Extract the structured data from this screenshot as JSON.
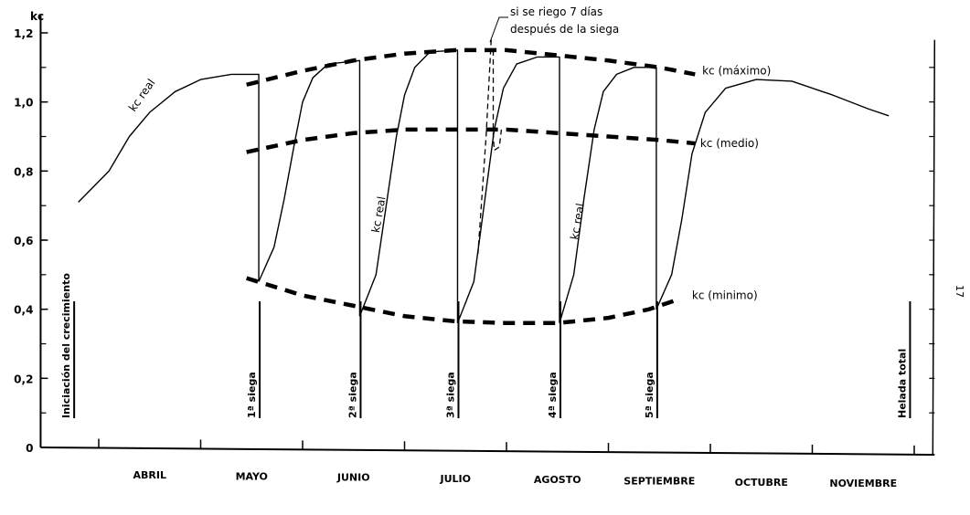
{
  "chart_data": {
    "type": "line",
    "title": "",
    "ylabel": "kc",
    "xlabel": "",
    "ylim": [
      0,
      1.2
    ],
    "xlim_months": [
      -0.57,
      8.2
    ],
    "y_ticks": [
      {
        "value": 0,
        "label": "0"
      },
      {
        "value": 0.2,
        "label": "0,2"
      },
      {
        "value": 0.4,
        "label": "0,4"
      },
      {
        "value": 0.6,
        "label": "0,6"
      },
      {
        "value": 0.8,
        "label": "0,8"
      },
      {
        "value": 1.0,
        "label": "1,0"
      },
      {
        "value": 1.2,
        "label": "1,2"
      }
    ],
    "month_ticks": [
      0,
      1,
      2,
      3,
      4,
      5,
      6,
      7,
      8
    ],
    "categories": [
      "ABRIL",
      "MAYO",
      "JUNIO",
      "JULIO",
      "AGOSTO",
      "SEPTIEMBRE",
      "OCTUBRE",
      "NOVIEMBRE"
    ],
    "series": [
      {
        "name": "kc real",
        "style": "solid",
        "points": [
          [
            -0.2,
            0.71
          ],
          [
            0.1,
            0.8
          ],
          [
            0.3,
            0.9
          ],
          [
            0.5,
            0.97
          ],
          [
            0.75,
            1.03
          ],
          [
            1.0,
            1.065
          ],
          [
            1.3,
            1.08
          ],
          [
            1.57,
            1.08
          ],
          [
            1.57,
            0.48
          ]
        ]
      },
      {
        "name": "kc real",
        "style": "solid",
        "points": [
          [
            1.57,
            0.48
          ],
          [
            1.72,
            0.58
          ],
          [
            1.82,
            0.72
          ],
          [
            1.92,
            0.88
          ],
          [
            2.0,
            1.0
          ],
          [
            2.1,
            1.07
          ],
          [
            2.25,
            1.11
          ],
          [
            2.56,
            1.12
          ],
          [
            2.56,
            0.38
          ]
        ]
      },
      {
        "name": "kc real",
        "style": "solid",
        "points": [
          [
            2.56,
            0.38
          ],
          [
            2.72,
            0.5
          ],
          [
            2.82,
            0.7
          ],
          [
            2.92,
            0.9
          ],
          [
            3.0,
            1.02
          ],
          [
            3.1,
            1.1
          ],
          [
            3.25,
            1.145
          ],
          [
            3.52,
            1.15
          ],
          [
            3.52,
            0.36
          ]
        ]
      },
      {
        "name": "kc real",
        "style": "solid",
        "points": [
          [
            3.52,
            0.36
          ],
          [
            3.68,
            0.48
          ],
          [
            3.78,
            0.7
          ],
          [
            3.88,
            0.92
          ],
          [
            3.97,
            1.04
          ],
          [
            4.1,
            1.11
          ],
          [
            4.3,
            1.13
          ],
          [
            4.52,
            1.13
          ],
          [
            4.52,
            0.36
          ]
        ]
      },
      {
        "name": "kc real",
        "style": "solid",
        "points": [
          [
            4.52,
            0.36
          ],
          [
            4.66,
            0.5
          ],
          [
            4.76,
            0.72
          ],
          [
            4.86,
            0.92
          ],
          [
            4.95,
            1.03
          ],
          [
            5.08,
            1.08
          ],
          [
            5.25,
            1.1
          ],
          [
            5.47,
            1.1
          ],
          [
            5.47,
            0.4
          ]
        ]
      },
      {
        "name": "kc real",
        "style": "solid",
        "points": [
          [
            5.47,
            0.4
          ],
          [
            5.62,
            0.5
          ],
          [
            5.72,
            0.66
          ],
          [
            5.82,
            0.85
          ],
          [
            5.95,
            0.97
          ],
          [
            6.15,
            1.04
          ],
          [
            6.45,
            1.065
          ],
          [
            6.8,
            1.06
          ],
          [
            7.2,
            1.02
          ],
          [
            7.55,
            0.98
          ],
          [
            7.75,
            0.96
          ]
        ]
      },
      {
        "name": "kc (máximo)",
        "style": "dashed",
        "points": [
          [
            1.45,
            1.05
          ],
          [
            2.0,
            1.09
          ],
          [
            2.5,
            1.12
          ],
          [
            3.0,
            1.14
          ],
          [
            3.5,
            1.15
          ],
          [
            4.0,
            1.15
          ],
          [
            4.5,
            1.135
          ],
          [
            5.0,
            1.12
          ],
          [
            5.5,
            1.1
          ],
          [
            5.85,
            1.08
          ]
        ]
      },
      {
        "name": "kc (medio)",
        "style": "dashed",
        "points": [
          [
            1.45,
            0.855
          ],
          [
            2.0,
            0.89
          ],
          [
            2.5,
            0.91
          ],
          [
            3.0,
            0.92
          ],
          [
            3.5,
            0.92
          ],
          [
            4.0,
            0.92
          ],
          [
            4.5,
            0.91
          ],
          [
            5.0,
            0.9
          ],
          [
            5.5,
            0.89
          ],
          [
            5.85,
            0.88
          ]
        ]
      },
      {
        "name": "kc (minimo)",
        "style": "dashed",
        "points": [
          [
            1.45,
            0.49
          ],
          [
            2.0,
            0.44
          ],
          [
            2.5,
            0.41
          ],
          [
            3.0,
            0.38
          ],
          [
            3.5,
            0.365
          ],
          [
            4.0,
            0.36
          ],
          [
            4.5,
            0.36
          ],
          [
            5.0,
            0.375
          ],
          [
            5.4,
            0.4
          ],
          [
            5.7,
            0.43
          ]
        ]
      },
      {
        "name": "si se riego 7 días",
        "style": "thin-dashed",
        "points": [
          [
            3.85,
            1.18
          ],
          [
            3.8,
            0.9
          ],
          [
            3.72,
            0.56
          ]
        ]
      },
      {
        "name": "si se riego 7 días",
        "style": "thin-dashed",
        "points": [
          [
            3.87,
            1.15
          ],
          [
            3.87,
            0.9
          ],
          [
            3.88,
            0.86
          ],
          [
            3.93,
            0.87
          ],
          [
            3.95,
            0.92
          ]
        ]
      }
    ],
    "events": [
      {
        "x": -0.25,
        "label": "Iniciación del crecimiento"
      },
      {
        "x": 1.57,
        "label": "1ª siega"
      },
      {
        "x": 2.56,
        "label": "2ª siega"
      },
      {
        "x": 3.52,
        "label": "3ª siega"
      },
      {
        "x": 4.52,
        "label": "4ª siega"
      },
      {
        "x": 5.47,
        "label": "5ª siega"
      },
      {
        "x": 7.95,
        "label": "Helada total"
      }
    ],
    "annotations": [
      {
        "text": "kc real",
        "x": 0.35,
        "y": 0.97,
        "angle": -55
      },
      {
        "text": "kc real",
        "x": 2.75,
        "y": 0.62,
        "angle": -80
      },
      {
        "text": "kc real",
        "x": 4.7,
        "y": 0.6,
        "angle": -80
      },
      {
        "text": "kc (máximo)",
        "x": 5.92,
        "y": 1.08,
        "angle": 0
      },
      {
        "text": "kc (medio)",
        "x": 5.9,
        "y": 0.87,
        "angle": 0
      },
      {
        "text": "kc (minimo)",
        "x": 5.82,
        "y": 0.43,
        "angle": 0
      }
    ],
    "note": [
      "si se riego 7 días",
      "después de la siega"
    ],
    "grid": false,
    "legend": "none"
  },
  "page_number": "17"
}
